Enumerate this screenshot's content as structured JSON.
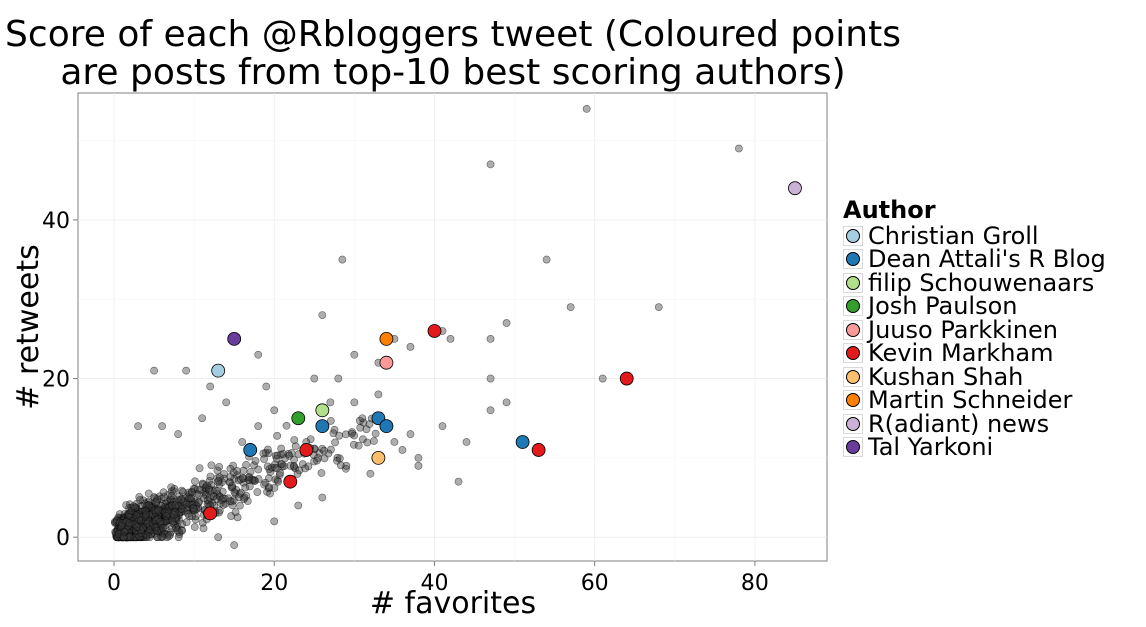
{
  "chart_data": {
    "type": "scatter",
    "title": "Score of each @Rbloggers tweet (Coloured points are posts from top-10 best scoring authors)",
    "xlabel": "# favorites",
    "ylabel": "# retweets",
    "xlim": [
      -4.5,
      89
    ],
    "ylim": [
      -3,
      56
    ],
    "x_ticks": [
      0,
      20,
      40,
      60,
      80
    ],
    "y_ticks": [
      0,
      20,
      40
    ],
    "grid": true,
    "legend_title": "Author",
    "legend_position": "right",
    "background_points": {
      "color": "#3a3a3a",
      "note_values": [
        [
          59,
          54
        ],
        [
          78,
          49
        ],
        [
          47,
          47
        ],
        [
          28.5,
          35
        ],
        [
          54,
          35
        ],
        [
          57,
          29
        ],
        [
          68,
          29
        ],
        [
          26,
          28
        ],
        [
          49,
          27
        ],
        [
          47,
          25
        ],
        [
          41,
          26
        ],
        [
          42,
          25
        ],
        [
          35,
          25
        ],
        [
          37,
          24
        ],
        [
          30,
          23
        ],
        [
          33,
          22
        ],
        [
          61,
          20
        ],
        [
          47,
          20
        ],
        [
          49,
          17
        ],
        [
          47,
          16
        ],
        [
          41,
          14
        ],
        [
          44,
          12
        ],
        [
          36,
          11
        ],
        [
          38,
          10
        ],
        [
          37,
          13
        ],
        [
          30,
          17
        ],
        [
          28,
          20
        ],
        [
          18,
          23
        ],
        [
          19,
          19
        ],
        [
          12,
          19
        ],
        [
          5,
          21
        ],
        [
          9,
          21
        ],
        [
          43,
          7
        ],
        [
          38,
          9
        ],
        [
          35,
          12
        ],
        [
          33,
          18
        ],
        [
          31,
          15
        ],
        [
          27,
          17
        ],
        [
          25,
          20
        ],
        [
          20,
          16
        ],
        [
          18,
          14
        ],
        [
          16,
          12
        ],
        [
          14,
          17
        ],
        [
          11,
          15
        ],
        [
          8,
          13
        ],
        [
          6,
          14
        ],
        [
          3,
          14
        ],
        [
          13,
          0
        ],
        [
          15,
          -1
        ],
        [
          20,
          2
        ],
        [
          23,
          4
        ],
        [
          26,
          5
        ],
        [
          22,
          9
        ],
        [
          24,
          12
        ],
        [
          29,
          9
        ],
        [
          32,
          8
        ]
      ]
    },
    "series": [
      {
        "name": "Christian Groll",
        "color": "#a6cee3",
        "points": [
          [
            13,
            21
          ]
        ]
      },
      {
        "name": "Dean Attali's R Blog",
        "color": "#1f78b4",
        "points": [
          [
            17,
            11
          ],
          [
            26,
            14
          ],
          [
            33,
            15
          ],
          [
            34,
            14
          ],
          [
            51,
            12
          ]
        ]
      },
      {
        "name": "filip Schouwenaars",
        "color": "#b2df8a",
        "points": [
          [
            26,
            16
          ]
        ]
      },
      {
        "name": "Josh Paulson",
        "color": "#33a02c",
        "points": [
          [
            23,
            15
          ]
        ]
      },
      {
        "name": "Juuso Parkkinen",
        "color": "#fb9a99",
        "points": [
          [
            34,
            22
          ]
        ]
      },
      {
        "name": "Kevin Markham",
        "color": "#e31a1c",
        "points": [
          [
            12,
            3
          ],
          [
            22,
            7
          ],
          [
            24,
            11
          ],
          [
            40,
            26
          ],
          [
            53,
            11
          ],
          [
            64,
            20
          ]
        ]
      },
      {
        "name": "Kushan Shah",
        "color": "#fdbf6f",
        "points": [
          [
            33,
            10
          ]
        ]
      },
      {
        "name": "Martin Schneider",
        "color": "#ff7f00",
        "points": [
          [
            34,
            25
          ]
        ]
      },
      {
        "name": "R(adiant) news",
        "color": "#cab2d6",
        "points": [
          [
            85,
            44
          ]
        ]
      },
      {
        "name": "Tal Yarkoni",
        "color": "#6a3d9a",
        "points": [
          [
            15,
            25
          ]
        ]
      }
    ]
  }
}
